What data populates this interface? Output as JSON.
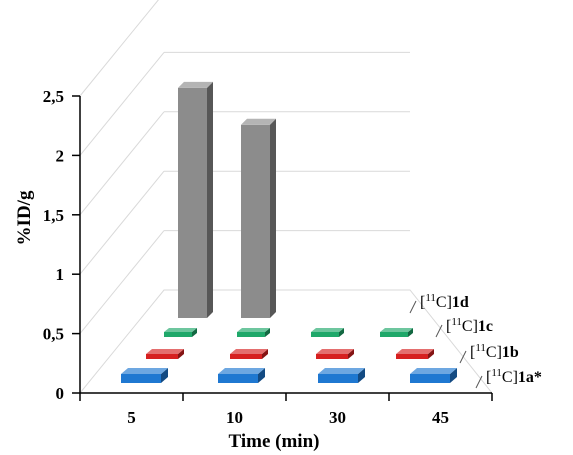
{
  "chart_data": {
    "type": "bar",
    "subtype": "3d-bar",
    "ylabel": "%ID/g",
    "xlabel": "Time (min)",
    "ylim": [
      0,
      2.5
    ],
    "y_ticks": [
      "0",
      "0,5",
      "1",
      "1,5",
      "2",
      "2,5"
    ],
    "categories": [
      "5",
      "10",
      "30",
      "45"
    ],
    "grid": true,
    "series": [
      {
        "prefix": "[",
        "sup": "11",
        "mid": "C]",
        "bold": "1a",
        "suffix": "*",
        "color": "#1f78d1",
        "values": [
          0.04,
          0.04,
          0.04,
          0.04
        ]
      },
      {
        "prefix": "[",
        "sup": "11",
        "mid": "C]",
        "bold": "1b",
        "suffix": "",
        "color": "#d62020",
        "values": [
          0.03,
          0.03,
          0.03,
          0.03
        ]
      },
      {
        "prefix": "[",
        "sup": "11",
        "mid": "C]",
        "bold": "1c",
        "suffix": "",
        "color": "#1fa86a",
        "values": [
          0.03,
          0.03,
          0.03,
          0.03
        ]
      },
      {
        "prefix": "[",
        "sup": "11",
        "mid": "C]",
        "bold": "1d",
        "suffix": "",
        "color": "#8c8c8c",
        "values": [
          1.87,
          1.57,
          0,
          0
        ]
      }
    ]
  }
}
